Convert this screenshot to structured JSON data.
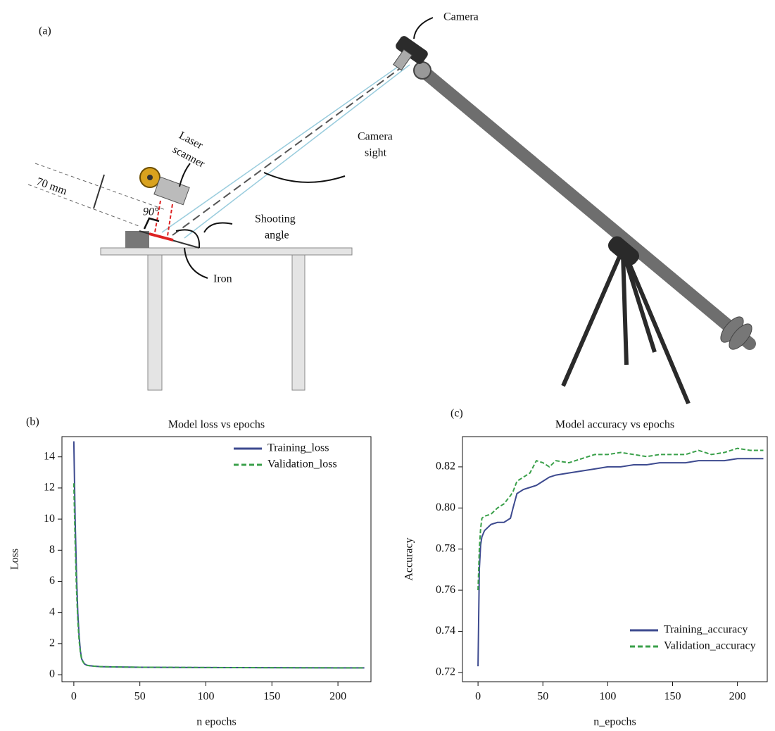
{
  "diagram": {
    "panel_label": "(a)",
    "camera": "Camera",
    "laser_scanner": [
      "Laser",
      "scanner"
    ],
    "distance": "70 mm",
    "right_angle": "90°",
    "shooting_angle": [
      "Shooting",
      "angle"
    ],
    "iron": "Iron",
    "camera_sight": [
      "Camera",
      "sight"
    ]
  },
  "chart_data": [
    {
      "type": "line",
      "panel_label": "(b)",
      "title": "Model loss vs epochs",
      "x_label": "n  epochs",
      "y_label": "Loss",
      "x": [
        0,
        1,
        2,
        3,
        4,
        5,
        6,
        8,
        10,
        15,
        20,
        30,
        50,
        100,
        150,
        200,
        220
      ],
      "series": [
        {
          "name": "Training_loss",
          "color": "#3d4a8f",
          "dash": false,
          "values": [
            15,
            10,
            6.5,
            4,
            2.5,
            1.5,
            1,
            0.7,
            0.6,
            0.55,
            0.52,
            0.5,
            0.48,
            0.46,
            0.45,
            0.44,
            0.44
          ]
        },
        {
          "name": "Validation_loss",
          "color": "#3aa04a",
          "dash": true,
          "values": [
            12.3,
            8.5,
            5.5,
            3.5,
            2.2,
            1.4,
            0.95,
            0.7,
            0.6,
            0.55,
            0.52,
            0.5,
            0.48,
            0.46,
            0.45,
            0.44,
            0.44
          ]
        }
      ],
      "xlim": [
        -9,
        225
      ],
      "ylim": [
        -0.45,
        15.3
      ],
      "xticks": [
        0,
        50,
        100,
        150,
        200
      ],
      "yticks": [
        0,
        2,
        4,
        6,
        8,
        10,
        12,
        14
      ],
      "legend": "upper right"
    },
    {
      "type": "line",
      "panel_label": "(c)",
      "title": "Model accuracy vs epochs",
      "x_label": "n_epochs",
      "y_label": "Accuracy",
      "x": [
        0,
        1,
        2,
        3,
        5,
        10,
        15,
        20,
        25,
        27,
        30,
        35,
        40,
        45,
        50,
        55,
        60,
        70,
        80,
        90,
        100,
        110,
        120,
        130,
        140,
        150,
        160,
        170,
        180,
        190,
        200,
        210,
        220
      ],
      "series": [
        {
          "name": "Training_accuracy",
          "color": "#3d4a8f",
          "dash": false,
          "values": [
            0.723,
            0.77,
            0.782,
            0.786,
            0.789,
            0.792,
            0.793,
            0.793,
            0.795,
            0.8,
            0.807,
            0.809,
            0.81,
            0.811,
            0.813,
            0.815,
            0.816,
            0.817,
            0.818,
            0.819,
            0.82,
            0.82,
            0.821,
            0.821,
            0.822,
            0.822,
            0.822,
            0.823,
            0.823,
            0.823,
            0.824,
            0.824,
            0.824
          ]
        },
        {
          "name": "Validation_accuracy",
          "color": "#3aa04a",
          "dash": true,
          "values": [
            0.76,
            0.78,
            0.79,
            0.795,
            0.796,
            0.797,
            0.8,
            0.802,
            0.806,
            0.808,
            0.813,
            0.815,
            0.817,
            0.823,
            0.822,
            0.82,
            0.823,
            0.822,
            0.824,
            0.826,
            0.826,
            0.827,
            0.826,
            0.825,
            0.826,
            0.826,
            0.826,
            0.828,
            0.826,
            0.827,
            0.829,
            0.828,
            0.828
          ]
        }
      ],
      "xlim": [
        -12,
        223
      ],
      "ylim": [
        0.7155,
        0.8347
      ],
      "xticks": [
        0,
        50,
        100,
        150,
        200
      ],
      "yticks": [
        0.72,
        0.74,
        0.76,
        0.78,
        {
          "value": 0.8,
          "label": "0.80"
        },
        0.82
      ],
      "legend": "lower right"
    }
  ]
}
